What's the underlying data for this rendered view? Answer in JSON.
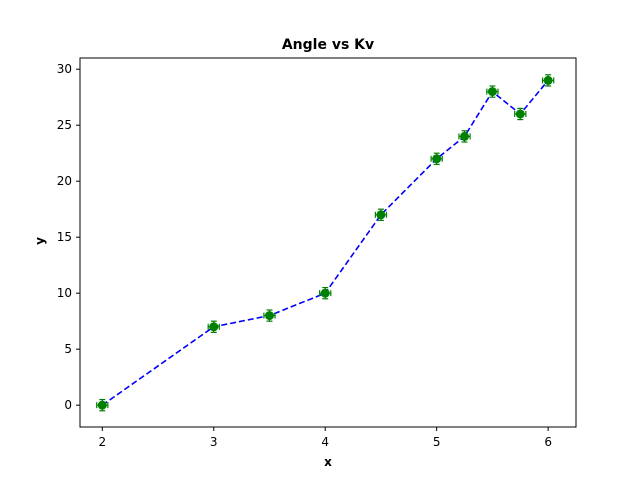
{
  "chart_data": {
    "type": "line",
    "title": "Angle vs Kv",
    "xlabel": "x",
    "ylabel": "y",
    "xlim": [
      1.8,
      6.25
    ],
    "ylim": [
      -1.95,
      31
    ],
    "x_ticks": [
      2,
      3,
      4,
      5,
      6
    ],
    "y_ticks": [
      0,
      5,
      10,
      15,
      20,
      25,
      30
    ],
    "grid": false,
    "series": [
      {
        "x": [
          2,
          3,
          3.5,
          4,
          4.5,
          5,
          5.25,
          5.5,
          5.75,
          6
        ],
        "y": [
          0,
          7,
          8,
          10,
          17,
          22,
          24,
          28,
          26,
          29
        ],
        "y_error": 0.5,
        "x_error": 0.05,
        "line_color": "#0000ff",
        "line_style": "dashed",
        "marker": "circle",
        "marker_color": "#008000"
      }
    ]
  }
}
